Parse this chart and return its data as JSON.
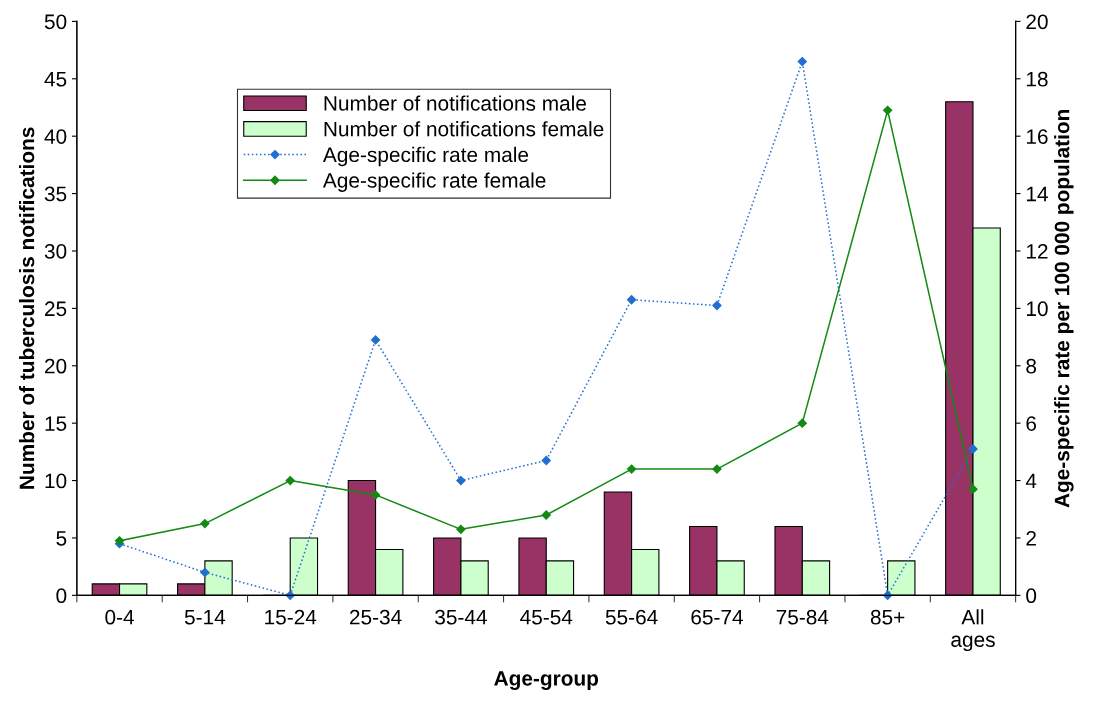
{
  "chart_data": {
    "type": "bar",
    "xlabel": "Age-group",
    "ylabel": "Number of tuberculosis notifications",
    "y2label": "Age-specific rate per 100 000 population",
    "categories": [
      "0-4",
      "5-14",
      "15-24",
      "25-34",
      "35-44",
      "45-54",
      "55-64",
      "65-74",
      "75-84",
      "85+",
      "All\nages"
    ],
    "series": [
      {
        "name": "Number of notifications male",
        "color": "#993366",
        "values": [
          1,
          1,
          0,
          10,
          5,
          5,
          9,
          6,
          6,
          0,
          43
        ]
      },
      {
        "name": "Number of notifications female",
        "color": "#ccffcc",
        "values": [
          1,
          3,
          5,
          4,
          3,
          3,
          4,
          3,
          3,
          3,
          32
        ]
      },
      {
        "name": "Age-specific rate male",
        "type": "line",
        "axis": "y2",
        "color": "#1f6fd0",
        "line_style": "dotted",
        "marker": "diamond",
        "values": [
          1.8,
          0.8,
          0,
          8.9,
          4.0,
          4.7,
          10.3,
          10.1,
          18.6,
          0,
          5.1
        ]
      },
      {
        "name": "Age-specific rate female",
        "type": "line",
        "axis": "y2",
        "color": "#138a13",
        "line_style": "solid",
        "marker": "diamond",
        "values": [
          1.9,
          2.5,
          4.0,
          3.5,
          2.3,
          2.8,
          4.4,
          4.4,
          6.0,
          16.9,
          3.7
        ]
      }
    ],
    "ylim": [
      0,
      50
    ],
    "yticks": [
      0,
      5,
      10,
      15,
      20,
      25,
      30,
      35,
      40,
      45,
      50
    ],
    "y2lim": [
      0,
      20
    ],
    "y2ticks": [
      0,
      2,
      4,
      6,
      8,
      10,
      12,
      14,
      16,
      18,
      20
    ],
    "grid": false,
    "legend": "top left"
  }
}
